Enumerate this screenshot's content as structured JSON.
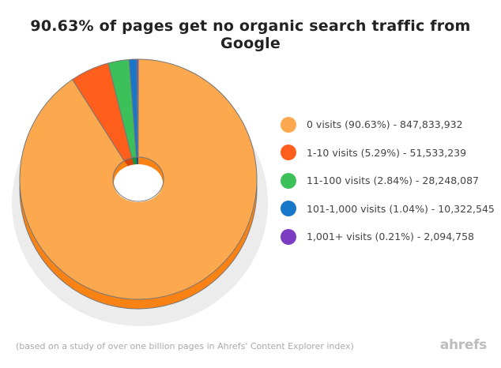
{
  "chart_data": {
    "type": "pie",
    "title": "90.63% of pages get no organic search traffic from Google",
    "series": [
      {
        "label": "0 visits (90.63%) - 847,833,932",
        "value": 90.63,
        "color": "#FCA84F",
        "side_color": "#F98214"
      },
      {
        "label": "1-10 visits (5.29%) - 51,533,239",
        "value": 5.29,
        "color": "#FF5E1D",
        "side_color": "#D9440B"
      },
      {
        "label": "11-100 visits (2.84%) - 28,248,087",
        "value": 2.84,
        "color": "#3CC05A",
        "side_color": "#1E8F3A"
      },
      {
        "label": "101-1,000 visits (1.04%) - 10,322,545",
        "value": 1.04,
        "color": "#1877C9",
        "side_color": "#0E5596"
      },
      {
        "label": "1,001+ visits (0.21%) - 2,094,758",
        "value": 0.21,
        "color": "#7B3CC2",
        "side_color": "#552890"
      }
    ],
    "footnote": "(based on a study of over one billion pages in Ahrefs' Content Explorer index)",
    "logo": "ahrefs"
  }
}
